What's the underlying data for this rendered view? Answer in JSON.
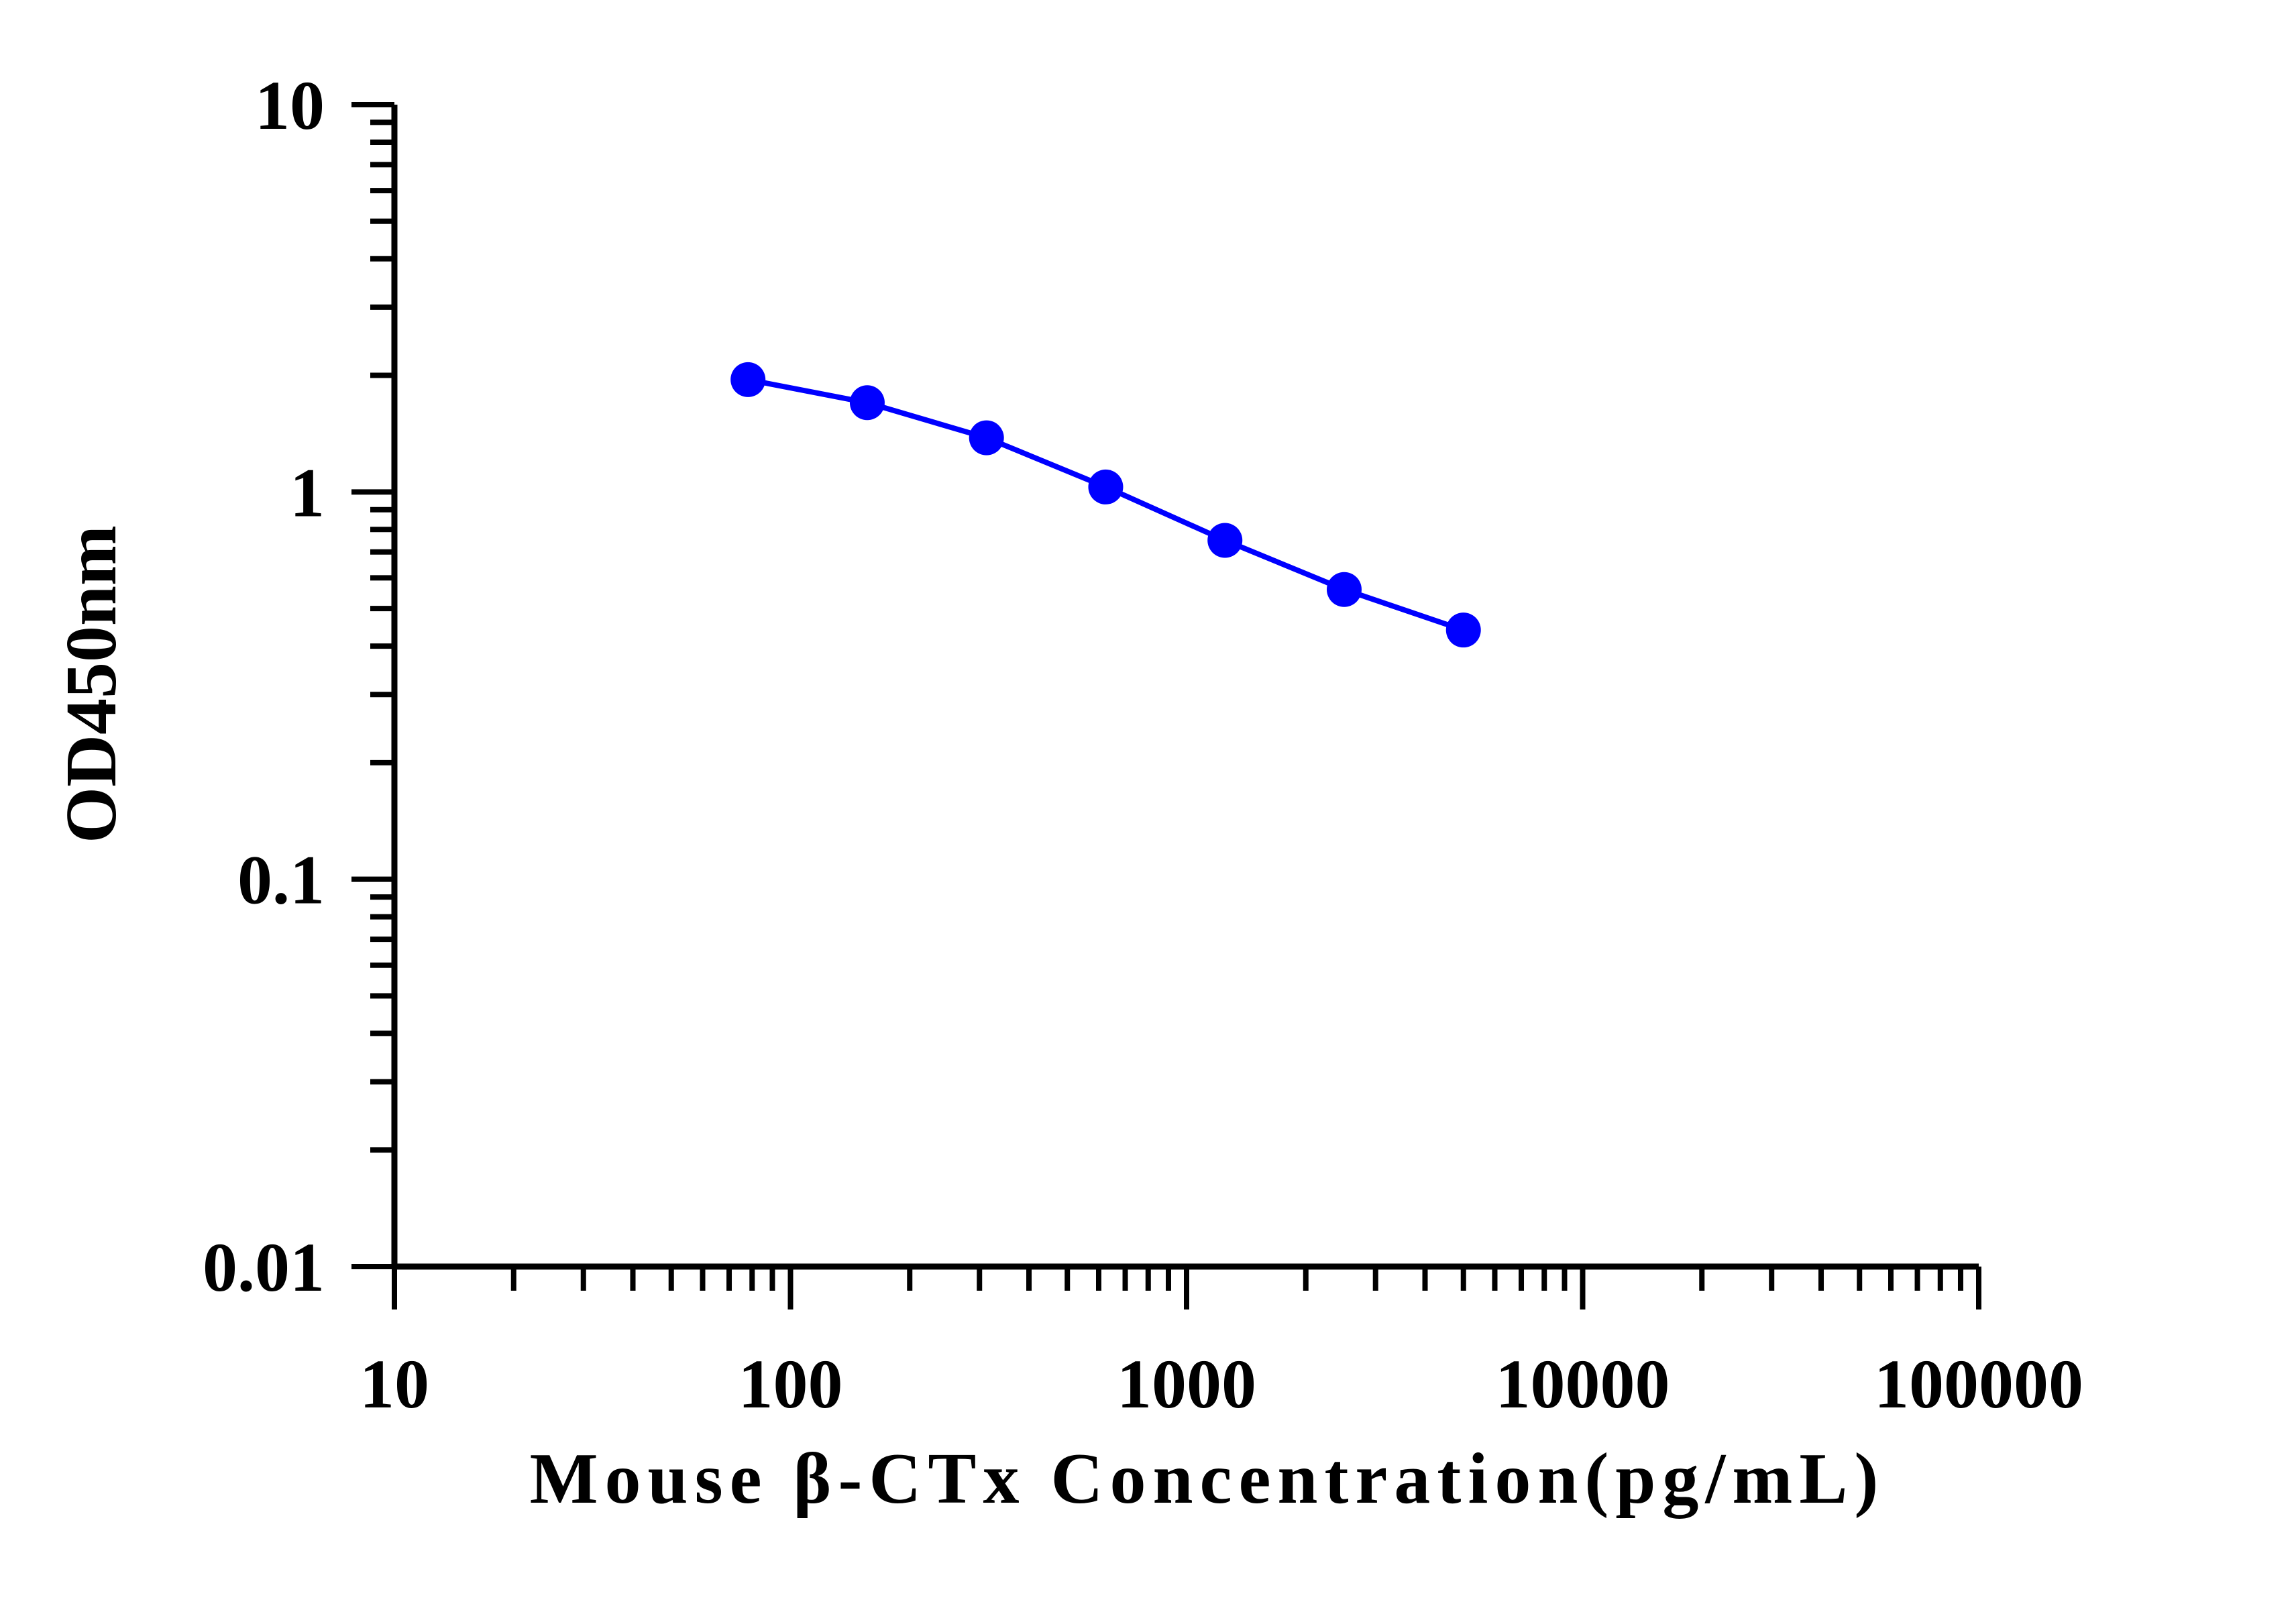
{
  "chart_data": {
    "type": "line",
    "title": "",
    "xlabel": "Mouse β-CTx Concentration(pg/mL)",
    "ylabel": "OD450nm",
    "xscale": "log",
    "yscale": "log",
    "xlim": [
      10,
      100000
    ],
    "ylim": [
      0.01,
      10
    ],
    "x_ticks": [
      "10",
      "100",
      "1000",
      "10000",
      "100000"
    ],
    "y_ticks": [
      "0.01",
      "0.1",
      "1",
      "10"
    ],
    "grid": false,
    "legend": "none",
    "series": [
      {
        "color": "#0000ff",
        "x": [
          78.125,
          156.25,
          312.5,
          625,
          1250,
          2500,
          5000
        ],
        "y": [
          1.95,
          1.7,
          1.38,
          1.03,
          0.75,
          0.56,
          0.44
        ]
      }
    ]
  }
}
